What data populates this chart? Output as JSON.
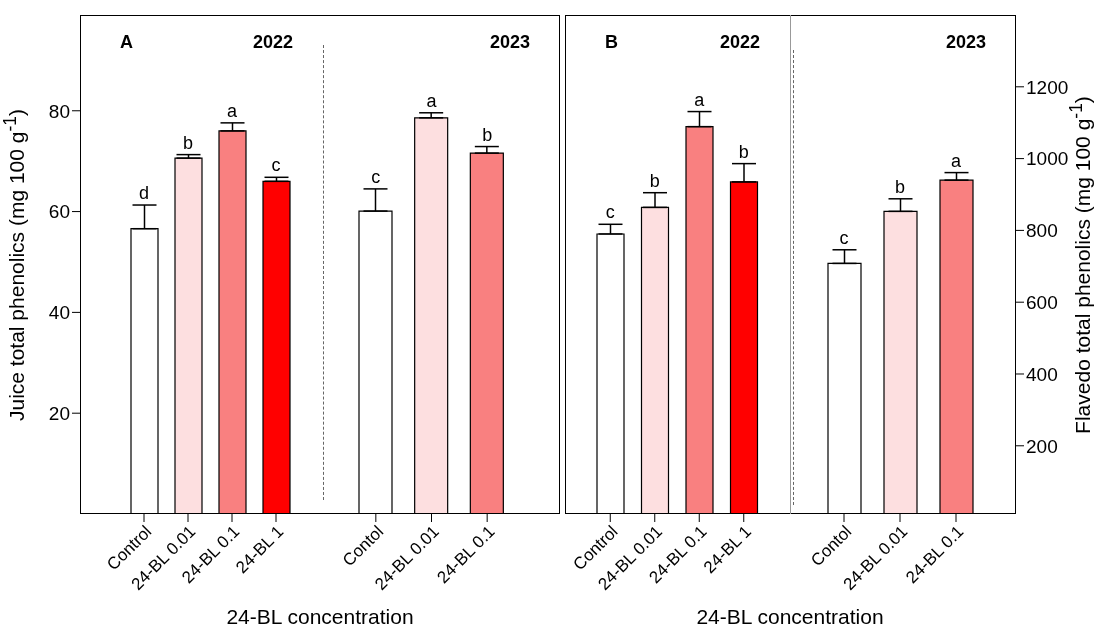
{
  "chart_data": [
    {
      "type": "bar",
      "title": "2022",
      "xlabel": "24-BL concentration",
      "ylabel": "Juice total phenolics (mg 100 g$^{-1}$)",
      "annotations": [
        "A",
        {
          "text": "d",
          "x": "Control",
          "y": 61.3
        },
        {
          "text": "b",
          "x": "24-BL 0.01",
          "y": 71.3
        },
        {
          "text": "a",
          "x": "24-BL 0.1",
          "y": 77.6
        },
        {
          "text": "c",
          "x": "24-BL 1",
          "y": 66.8
        }
      ],
      "categories": [
        "Control",
        "24-BL 0.01",
        "24-BL 0.1",
        "24-BL 1"
      ],
      "values": [
        56.6,
        70.6,
        76.0,
        66.0
      ],
      "errors": [
        [
          56.6,
          61.3
        ],
        [
          70.6,
          71.3
        ],
        [
          76.0,
          77.6
        ],
        [
          66.0,
          66.8
        ]
      ],
      "colors": [
        "#ffffff",
        "#fddfe0",
        "#f98080",
        "#ff0000"
      ],
      "ylim": [
        0,
        99
      ],
      "yticks": [
        20,
        40,
        60,
        80
      ],
      "grid": false,
      "legend": false
    },
    {
      "type": "bar",
      "title": "2023",
      "annotations": [
        {
          "text": "c",
          "x": "Contol",
          "y": 64.5
        },
        {
          "text": "a",
          "x": "24-BL 0.01",
          "y": 79.6
        },
        {
          "text": "b",
          "x": "24-BL 0.1",
          "y": 72.9
        }
      ],
      "categories": [
        "Contol",
        "24-BL 0.01",
        "24-BL 0.1"
      ],
      "values": [
        60.1,
        78.6,
        71.6
      ],
      "errors": [
        [
          60.1,
          64.5
        ],
        [
          78.6,
          79.6
        ],
        [
          71.6,
          72.9
        ]
      ],
      "colors": [
        "#ffffff",
        "#fddfe0",
        "#f98080"
      ],
      "ylim": [
        0,
        99
      ],
      "yticks": [
        20,
        40,
        60,
        80
      ],
      "tick_labels": "x",
      "grid": false,
      "legend": false
    },
    {
      "type": "bar",
      "title": "2022",
      "xlabel": "24-BL concentration",
      "annotations": [
        "B",
        {
          "text": "c",
          "x": "Control",
          "y": 817
        },
        {
          "text": "b",
          "x": "24-BL 0.01",
          "y": 905
        },
        {
          "text": "a",
          "x": "24-BL 0.1",
          "y": 1131
        },
        {
          "text": "b",
          "x": "24-BL 1",
          "y": 986
        }
      ],
      "categories": [
        "Control",
        "24-BL 0.01",
        "24-BL 0.1",
        "24-BL 1"
      ],
      "values": [
        790,
        864,
        1089,
        935
      ],
      "errors": [
        [
          790,
          817
        ],
        [
          864,
          905
        ],
        [
          1089,
          1131
        ],
        [
          935,
          986
        ]
      ],
      "colors": [
        "#ffffff",
        "#fddfe0",
        "#f98080",
        "#ff0000"
      ],
      "ylim": [
        10,
        1400
      ],
      "yticks": [
        200,
        400,
        600,
        800,
        1000,
        1200
      ],
      "tick_labels": "x",
      "grid": false,
      "legend": false
    },
    {
      "type": "bar",
      "title": "2023",
      "ylabel": "Flavedo total phenolics (mg 100 g$^{-1}$)",
      "annotations": [
        {
          "text": "c",
          "x": "Contol",
          "y": 746
        },
        {
          "text": "b",
          "x": "24-BL 0.01",
          "y": 888
        },
        {
          "text": "a",
          "x": "24-BL 0.1",
          "y": 961
        }
      ],
      "categories": [
        "Contol",
        "24-BL 0.01",
        "24-BL 0.1"
      ],
      "values": [
        708,
        853,
        940
      ],
      "errors": [
        [
          708,
          746
        ],
        [
          853,
          888
        ],
        [
          940,
          961
        ]
      ],
      "colors": [
        "#ffffff",
        "#fddfe0",
        "#f98080"
      ],
      "ylim": [
        10,
        1400
      ],
      "yticks": [
        200,
        400,
        600,
        800,
        1000,
        1200
      ],
      "grid": false,
      "legend": false
    }
  ]
}
